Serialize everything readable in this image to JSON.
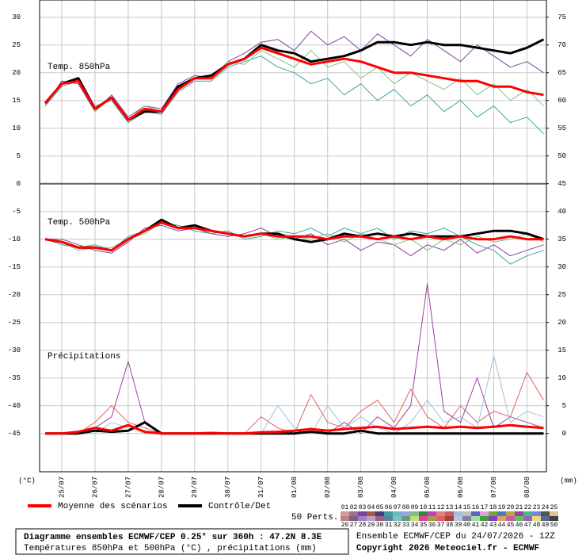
{
  "chart_data": {
    "type": "line",
    "panel_labels": [
      "Temp. 850hPa",
      "Temp. 500hPa",
      "Précipitations"
    ],
    "ylabel": "(°C)",
    "y2label": "(mm)",
    "xlim": [
      -4,
      362
    ],
    "xticks": [
      {
        "value": 12,
        "label": "25/07"
      },
      {
        "value": 36,
        "label": "26/07"
      },
      {
        "value": 60,
        "label": "27/07"
      },
      {
        "value": 84,
        "label": "28/07"
      },
      {
        "value": 108,
        "label": "29/07"
      },
      {
        "value": 132,
        "label": "30/07"
      },
      {
        "value": 156,
        "label": "31/07"
      },
      {
        "value": 180,
        "label": "01/08"
      },
      {
        "value": 204,
        "label": "02/08"
      },
      {
        "value": 228,
        "label": "03/08"
      },
      {
        "value": 252,
        "label": "04/08"
      },
      {
        "value": 276,
        "label": "05/08"
      },
      {
        "value": 300,
        "label": "06/08"
      },
      {
        "value": 324,
        "label": "07/08"
      },
      {
        "value": 348,
        "label": "08/08"
      }
    ],
    "ylim": [
      -51.9,
      33.1
    ],
    "yticks": [
      -45,
      -40,
      -35,
      -30,
      -25,
      -20,
      -15,
      -10,
      -5,
      0,
      5,
      10,
      15,
      20,
      25,
      30
    ],
    "y2lim": [
      -6.9,
      78.1
    ],
    "y2ticks": [
      0,
      5,
      10,
      15,
      20,
      25,
      30,
      35,
      40,
      45,
      50,
      55,
      60,
      65,
      70,
      75
    ],
    "panel_split": 0,
    "grid": true,
    "x": [
      0,
      12,
      24,
      36,
      48,
      60,
      72,
      84,
      96,
      108,
      120,
      132,
      144,
      156,
      168,
      180,
      192,
      204,
      216,
      228,
      240,
      252,
      264,
      276,
      288,
      300,
      312,
      324,
      336,
      348,
      360
    ],
    "series": [
      {
        "color": "#8040a0",
        "width": 1,
        "values": [
          14,
          18.5,
          18,
          13,
          16,
          12,
          14,
          13.5,
          18,
          19.5,
          19,
          22,
          23.5,
          25.5,
          26,
          24,
          27.5,
          25,
          26.5,
          24,
          27,
          25,
          23,
          26,
          24,
          22,
          25,
          23,
          21,
          22,
          20
        ]
      },
      {
        "color": "#40a0a0",
        "width": 1,
        "values": [
          14,
          17.5,
          18.5,
          14,
          15,
          11,
          13,
          12.5,
          16.5,
          18.5,
          18.5,
          21,
          22,
          23,
          21,
          20,
          18,
          19,
          16,
          18,
          15,
          17,
          14,
          16,
          13,
          15,
          12,
          14,
          11,
          12,
          9
        ]
      },
      {
        "color": "#80c080",
        "width": 1,
        "values": [
          14.5,
          18,
          19,
          13,
          15.5,
          11.5,
          14,
          13,
          17,
          19,
          19,
          22,
          21.5,
          24,
          22.5,
          21,
          24,
          21,
          22,
          19,
          21,
          18,
          20,
          18.5,
          17,
          19,
          16,
          18,
          15,
          17,
          14
        ]
      },
      {
        "color": "#8040a0",
        "width": 1,
        "values": [
          -10,
          -10,
          -11,
          -12,
          -12.5,
          -10.5,
          -8,
          -7.5,
          -8.5,
          -8,
          -9,
          -9.5,
          -9,
          -8,
          -9.5,
          -10,
          -9,
          -11,
          -10,
          -12,
          -10.5,
          -11,
          -13,
          -11,
          -12,
          -10,
          -12.5,
          -11,
          -13,
          -12,
          -11
        ]
      },
      {
        "color": "#40a0a0",
        "width": 1,
        "values": [
          -10,
          -11,
          -11.5,
          -11,
          -12,
          -9.5,
          -8.5,
          -7,
          -7.5,
          -8.5,
          -9,
          -8.5,
          -10,
          -9.5,
          -8.5,
          -9,
          -8,
          -9.5,
          -8,
          -9,
          -8,
          -10,
          -8.5,
          -9,
          -8,
          -9.5,
          -11,
          -12,
          -14.5,
          -13,
          -12
        ]
      },
      {
        "color": "#80c080",
        "width": 1,
        "values": [
          -10,
          -10.5,
          -12,
          -11.5,
          -11.5,
          -10,
          -9,
          -7,
          -8,
          -8,
          -8.5,
          -9,
          -9.5,
          -9,
          -10,
          -9.5,
          -10,
          -9,
          -10.5,
          -9,
          -10,
          -11,
          -10,
          -12,
          -10,
          -11,
          -9.5,
          -10.5,
          -10,
          -9,
          -10.5
        ]
      },
      {
        "color": "#a040a0",
        "width": 1,
        "axis": "y2",
        "values": [
          0,
          0,
          0,
          1,
          3,
          13,
          2,
          0,
          0,
          0,
          0,
          0,
          0,
          0,
          0,
          0,
          1,
          0,
          2,
          0,
          3,
          1,
          5,
          27,
          4,
          2,
          10,
          1,
          3,
          2,
          1
        ]
      },
      {
        "color": "#e06060",
        "width": 1,
        "axis": "y2",
        "values": [
          0,
          0,
          0,
          2,
          5,
          2,
          1,
          0,
          0,
          0,
          0,
          0,
          0,
          3,
          1,
          0,
          7,
          2,
          1,
          4,
          6,
          2,
          8,
          3,
          1,
          5,
          2,
          4,
          3,
          11,
          6
        ]
      },
      {
        "color": "#a0c0e0",
        "width": 1,
        "axis": "y2",
        "values": [
          0,
          0,
          0,
          0,
          2,
          1,
          0,
          0,
          0,
          0,
          0,
          0,
          0,
          0,
          5,
          1,
          0,
          5,
          1,
          3,
          1,
          0,
          2,
          6,
          2,
          3,
          1,
          14,
          2,
          4,
          3
        ]
      },
      {
        "color": "#000000",
        "width": 3,
        "values": [
          14.5,
          18,
          19,
          13.5,
          15.5,
          11.5,
          13,
          13,
          17.5,
          19,
          19.5,
          21.5,
          22.5,
          25,
          24,
          23.5,
          22,
          22.5,
          23,
          24,
          25.5,
          25.5,
          25,
          25.5,
          25,
          25,
          24.5,
          24,
          23.5,
          24.5,
          26
        ]
      },
      {
        "color": "#000000",
        "width": 3,
        "values": [
          -10,
          -10.5,
          -11.5,
          -11.5,
          -12,
          -10,
          -8.5,
          -6.5,
          -8,
          -7.5,
          -8.5,
          -9,
          -9.5,
          -9,
          -9,
          -10,
          -10.5,
          -10,
          -9,
          -9.5,
          -9,
          -9.5,
          -9,
          -9.5,
          -9.5,
          -9.5,
          -9,
          -8.5,
          -8.5,
          -9,
          -10
        ]
      },
      {
        "color": "#000000",
        "width": 3,
        "axis": "y2",
        "values": [
          0,
          0,
          0,
          0.5,
          0.3,
          0.5,
          2,
          0,
          0,
          0,
          0,
          0,
          0,
          0,
          0,
          0,
          0.3,
          0,
          0,
          0.5,
          0,
          0,
          0,
          0,
          0,
          0,
          0,
          0,
          0,
          0,
          0
        ]
      },
      {
        "color": "#ff0000",
        "width": 3,
        "values": [
          14.5,
          18,
          18.5,
          13.5,
          15.5,
          11.5,
          13.5,
          13,
          17,
          19,
          19,
          21.5,
          22.5,
          24.5,
          23.5,
          22.5,
          21.5,
          22,
          22.5,
          22,
          21,
          20,
          20,
          19.5,
          19,
          18.5,
          18.5,
          17.5,
          17.5,
          16.5,
          16
        ]
      },
      {
        "color": "#ff0000",
        "width": 3,
        "values": [
          -10,
          -10.5,
          -11.5,
          -11.5,
          -12,
          -10,
          -8.5,
          -7,
          -8,
          -8,
          -8.5,
          -9,
          -9.5,
          -9,
          -9.5,
          -9.5,
          -9.5,
          -10,
          -9.5,
          -9.5,
          -10,
          -9.5,
          -10,
          -9.5,
          -10,
          -9.5,
          -10,
          -10,
          -9.5,
          -10,
          -10
        ]
      },
      {
        "color": "#ff0000",
        "width": 3,
        "axis": "y2",
        "values": [
          0,
          0,
          0.3,
          1,
          0.5,
          1.5,
          0.3,
          0,
          0,
          0,
          0.1,
          0,
          0,
          0.2,
          0.3,
          0.5,
          0.8,
          0.5,
          0.8,
          1,
          1.2,
          0.8,
          1,
          1.2,
          1,
          1.2,
          1,
          1.2,
          1.5,
          1.2,
          1
        ]
      }
    ],
    "legend": [
      {
        "name": "Moyenne des scénarios",
        "color": "#ff0000"
      },
      {
        "name": "Contrôle/Det",
        "color": "#000000"
      }
    ],
    "perturbations": {
      "title": "50 Perts.",
      "items": [
        {
          "label": "01",
          "color": "#c8a0a0"
        },
        {
          "label": "02",
          "color": "#a07090"
        },
        {
          "label": "03",
          "color": "#8040a0"
        },
        {
          "label": "04",
          "color": "#a06040"
        },
        {
          "label": "05",
          "color": "#404080"
        },
        {
          "label": "06",
          "color": "#40a0a0"
        },
        {
          "label": "07",
          "color": "#60c0c0"
        },
        {
          "label": "08",
          "color": "#a0a0e0"
        },
        {
          "label": "09",
          "color": "#80c080"
        },
        {
          "label": "10",
          "color": "#408040"
        },
        {
          "label": "11",
          "color": "#c040c0"
        },
        {
          "label": "12",
          "color": "#e08080"
        },
        {
          "label": "13",
          "color": "#c06060"
        },
        {
          "label": "14",
          "color": "#a0c0e0"
        },
        {
          "label": "15",
          "color": "#c0c0c0"
        },
        {
          "label": "16",
          "color": "#6060c0"
        },
        {
          "label": "17",
          "color": "#e0a0e0"
        },
        {
          "label": "18",
          "color": "#80a040"
        },
        {
          "label": "19",
          "color": "#4080c0"
        },
        {
          "label": "20",
          "color": "#c0a040"
        },
        {
          "label": "21",
          "color": "#a040a0"
        },
        {
          "label": "22",
          "color": "#40c080"
        },
        {
          "label": "23",
          "color": "#8080e0"
        },
        {
          "label": "24",
          "color": "#406040"
        },
        {
          "label": "25",
          "color": "#e0c0a0"
        },
        {
          "label": "26",
          "color": "#c08080"
        },
        {
          "label": "27",
          "color": "#806080"
        },
        {
          "label": "28",
          "color": "#a080c0"
        },
        {
          "label": "29",
          "color": "#c0a0c0"
        },
        {
          "label": "30",
          "color": "#a06080"
        },
        {
          "label": "31",
          "color": "#6080a0"
        },
        {
          "label": "32",
          "color": "#80c0c0"
        },
        {
          "label": "33",
          "color": "#60a080"
        },
        {
          "label": "34",
          "color": "#c0e080"
        },
        {
          "label": "35",
          "color": "#e040a0"
        },
        {
          "label": "36",
          "color": "#a0a040"
        },
        {
          "label": "37",
          "color": "#e06060"
        },
        {
          "label": "38",
          "color": "#a04040"
        },
        {
          "label": "39",
          "color": "#c0c0e0"
        },
        {
          "label": "40",
          "color": "#8080a0"
        },
        {
          "label": "41",
          "color": "#a0e0a0"
        },
        {
          "label": "42",
          "color": "#40a040"
        },
        {
          "label": "43",
          "color": "#8040c0"
        },
        {
          "label": "44",
          "color": "#e0a060"
        },
        {
          "label": "45",
          "color": "#c060a0"
        },
        {
          "label": "46",
          "color": "#60c060"
        },
        {
          "label": "47",
          "color": "#a060c0"
        },
        {
          "label": "48",
          "color": "#e0e080"
        },
        {
          "label": "49",
          "color": "#6060a0"
        },
        {
          "label": "50",
          "color": "#404040"
        }
      ]
    },
    "footer": {
      "title": "Diagramme ensembles ECMWF/CEP 0.25° sur 360h : 47.2N 8.3E",
      "subtitle": "Températures 850hPa et 500hPa (°C) , précipitations (mm)",
      "run": "Ensemble ECMWF/CEP du 24/07/2026 - 12Z",
      "copyright": "Copyright 2026 Meteociel.fr - ECMWF"
    }
  }
}
